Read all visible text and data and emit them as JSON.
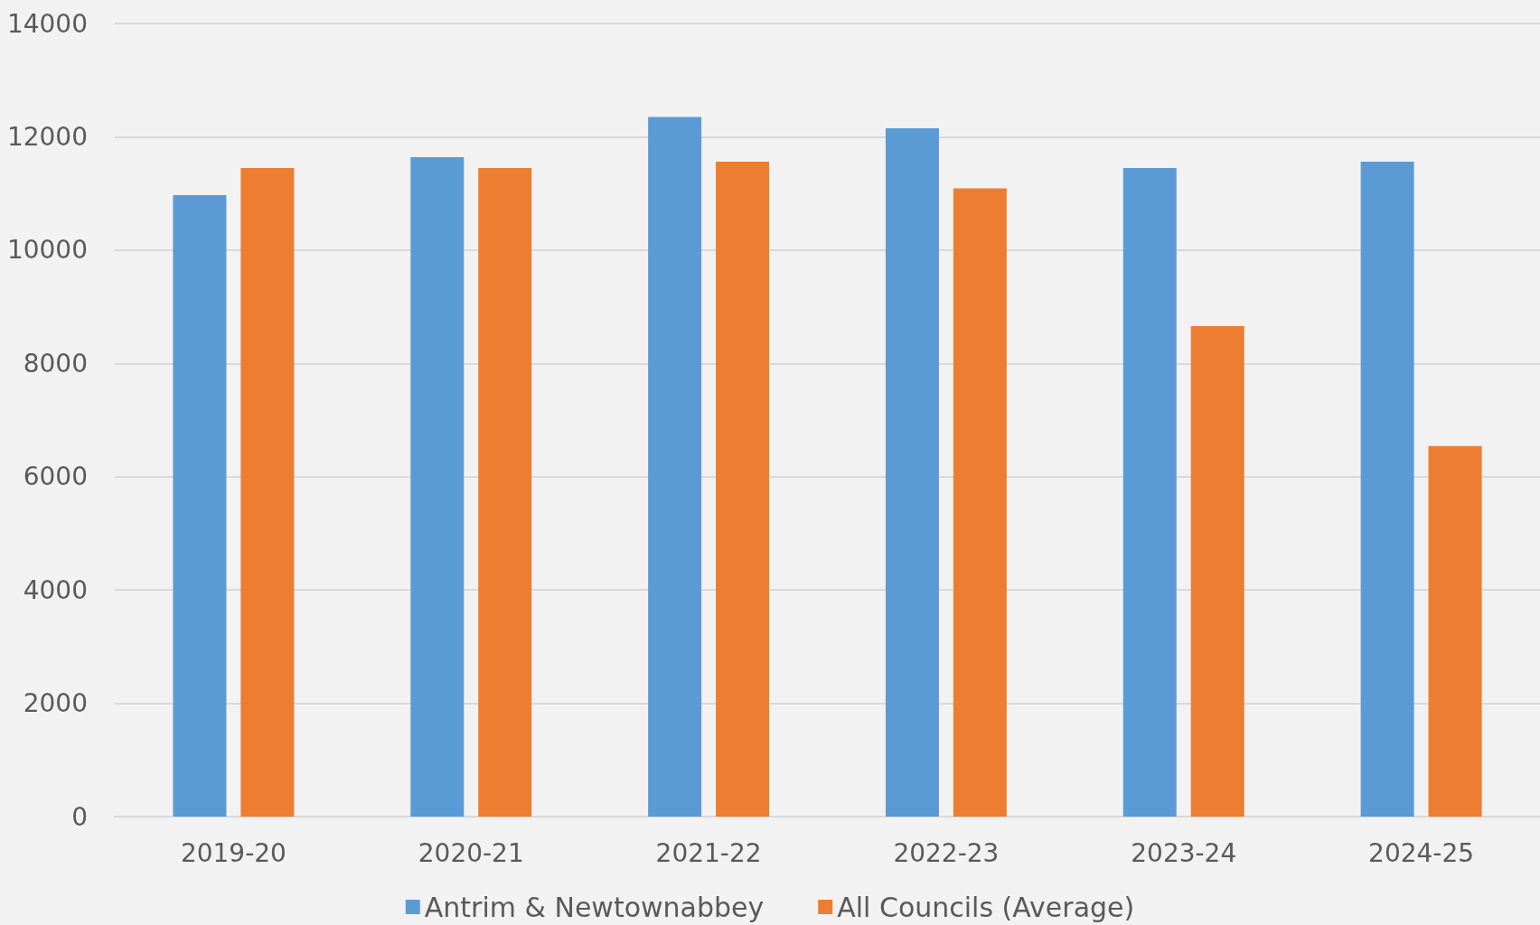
{
  "chart_data": {
    "type": "bar",
    "categories": [
      "2019-20",
      "2020-21",
      "2021-22",
      "2022-23",
      "2023-24",
      "2024-25"
    ],
    "series": [
      {
        "name": "Antrim & Newtownabbey",
        "color": "#5b9bd5",
        "values": [
          10970,
          11640,
          12350,
          12150,
          11450,
          11560
        ]
      },
      {
        "name": "All Councils (Average)",
        "color": "#ed7d31",
        "values": [
          11450,
          11450,
          11560,
          11090,
          8660,
          6540
        ]
      }
    ],
    "ylim": [
      0,
      14000
    ],
    "yticks": [
      0,
      2000,
      4000,
      6000,
      8000,
      10000,
      12000,
      14000
    ],
    "grid": "y",
    "legend": "bottom"
  }
}
